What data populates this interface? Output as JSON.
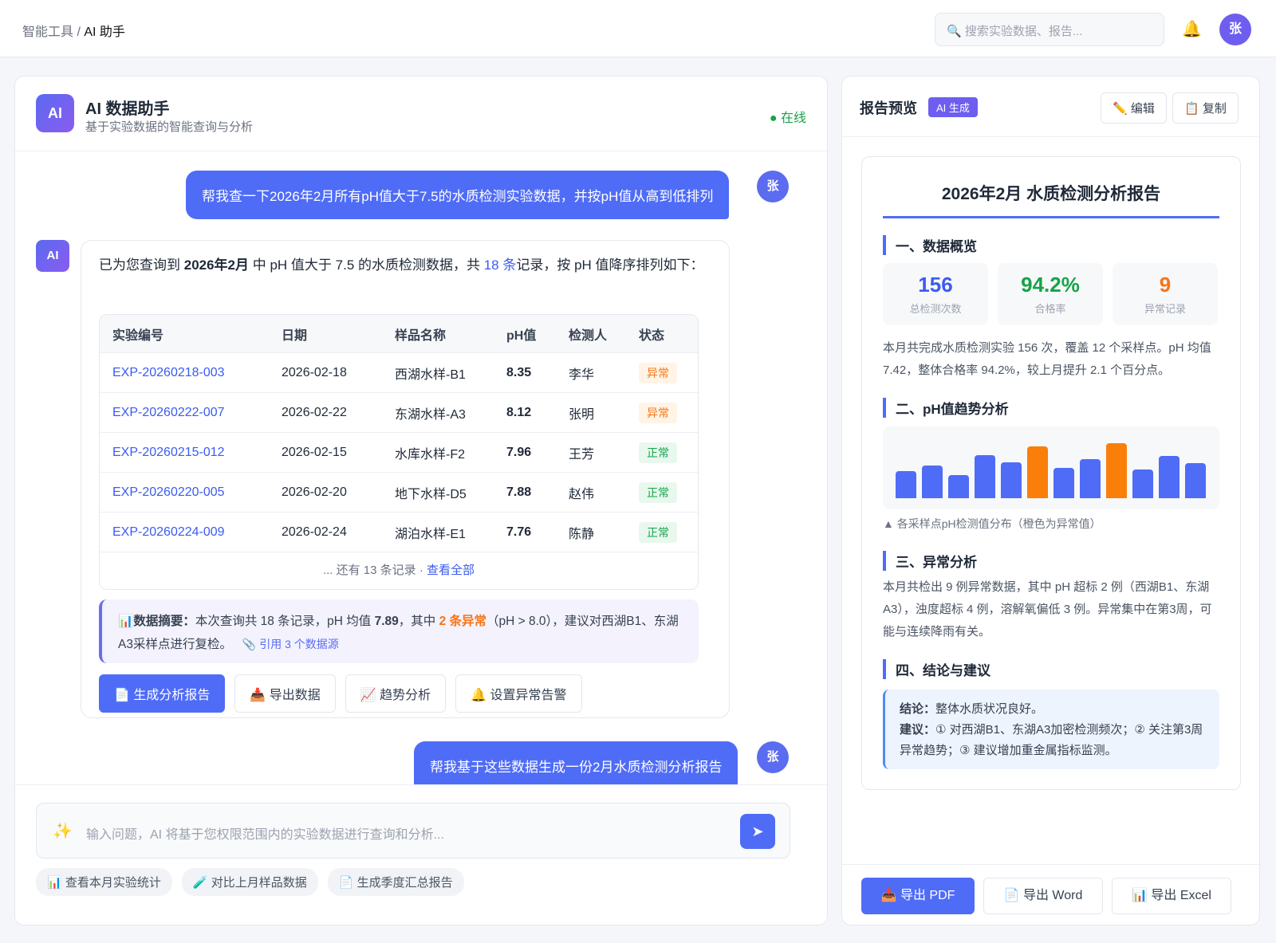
{
  "topbar": {
    "breadcrumb_parent": "智能工具",
    "breadcrumb_sep": " / ",
    "breadcrumb_current": "AI 助手",
    "search_placeholder": "搜索实验数据、报告...",
    "user_initial": "张"
  },
  "chat": {
    "logo": "AI",
    "title": "AI 数据助手",
    "subtitle": "基于实验数据的智能查询与分析",
    "status": "● 在线",
    "user_msg1": "帮我查一下2026年2月所有pH值大于7.5的水质检测实验数据，并按pH值从高到低排列",
    "user_msg2": "帮我基于这些数据生成一份2月水质检测分析报告",
    "ai_avatar": "AI",
    "reply_parts": [
      "已为您查询到 ",
      "2026年2月",
      " 中 pH 值大于 7.5 的水质检测数据，共 ",
      "18 条",
      "记录，按 pH 值降序排列如下："
    ],
    "table": {
      "headers": [
        "实验编号",
        "日期",
        "样品名称",
        "pH值",
        "检测人",
        "状态"
      ],
      "rows": [
        [
          "EXP-20260218-003",
          "2026-02-18",
          "西湖水样-B1",
          "8.35",
          "李华",
          "异常"
        ],
        [
          "EXP-20260222-007",
          "2026-02-22",
          "东湖水样-A3",
          "8.12",
          "张明",
          "异常"
        ],
        [
          "EXP-20260215-012",
          "2026-02-15",
          "水库水样-F2",
          "7.96",
          "王芳",
          "正常"
        ],
        [
          "EXP-20260220-005",
          "2026-02-20",
          "地下水样-D5",
          "7.88",
          "赵伟",
          "正常"
        ],
        [
          "EXP-20260224-009",
          "2026-02-24",
          "湖泊水样-E1",
          "7.76",
          "陈静",
          "正常"
        ]
      ],
      "more_text": "... 还有 13 条记录 · ",
      "more_link": "查看全部"
    },
    "summary": {
      "icon": "📊",
      "label": "数据摘要：",
      "t1": "本次查询共 18 条记录，pH 均值 ",
      "mean": "7.89",
      "t2": "，其中 ",
      "abn": "2 条异常",
      "t3": "（pH > 8.0），建议对西湖B1、东湖A3采样点进行复检。",
      "cite": "📎 引用 3 个数据源"
    },
    "actions": [
      "📄 生成分析报告",
      "📥 导出数据",
      "📈 趋势分析",
      "🔔 设置异常告警"
    ],
    "input_placeholder": "输入问题，AI 将基于您权限范围内的实验数据进行查询和分析...",
    "chips": [
      "📊 查看本月实验统计",
      "🧪 对比上月样品数据",
      "📄 生成季度汇总报告"
    ]
  },
  "report": {
    "title": "报告预览",
    "tag": "AI 生成",
    "edit": "✏️ 编辑",
    "copy": "📋 复制",
    "doc_title": "2026年2月 水质检测分析报告",
    "s1": "一、数据概览",
    "stats": [
      {
        "value": "156",
        "label": "总检测次数",
        "color": "#3b5bf0"
      },
      {
        "value": "94.2%",
        "label": "合格率",
        "color": "#16a34a"
      },
      {
        "value": "9",
        "label": "异常记录",
        "color": "#f97316"
      }
    ],
    "p1": "本月共完成水质检测实验 156 次，覆盖 12 个采样点。pH 均值 7.42，整体合格率 94.2%，较上月提升 2.1 个百分点。",
    "s2": "二、pH值趋势分析",
    "bars": [
      {
        "level": 0.38,
        "abnormal": false
      },
      {
        "level": 0.46,
        "abnormal": false
      },
      {
        "level": 0.32,
        "abnormal": false
      },
      {
        "level": 0.6,
        "abnormal": false
      },
      {
        "level": 0.5,
        "abnormal": false
      },
      {
        "level": 0.72,
        "abnormal": true
      },
      {
        "level": 0.42,
        "abnormal": false
      },
      {
        "level": 0.55,
        "abnormal": false
      },
      {
        "level": 0.77,
        "abnormal": true
      },
      {
        "level": 0.4,
        "abnormal": false
      },
      {
        "level": 0.59,
        "abnormal": false
      },
      {
        "level": 0.49,
        "abnormal": false
      }
    ],
    "colors": {
      "normal": "#4f6cf7",
      "abnormal": "#f97f0a"
    },
    "caption": "▲ 各采样点pH检测值分布（橙色为异常值）",
    "s3": "三、异常分析",
    "p3": "本月共检出 9 例异常数据，其中 pH 超标 2 例（西湖B1、东湖A3），浊度超标 4 例，溶解氧偏低 3 例。异常集中在第3周，可能与连续降雨有关。",
    "s4": "四、结论与建议",
    "concl_label": "结论：",
    "concl": "整体水质状况良好。",
    "sugg_label": "建议：",
    "sugg": "① 对西湖B1、东湖A3加密检测频次；② 关注第3周异常趋势；③ 建议增加重金属指标监测。",
    "export": [
      "📥 导出 PDF",
      "📄 导出 Word",
      "📊 导出 Excel"
    ]
  }
}
